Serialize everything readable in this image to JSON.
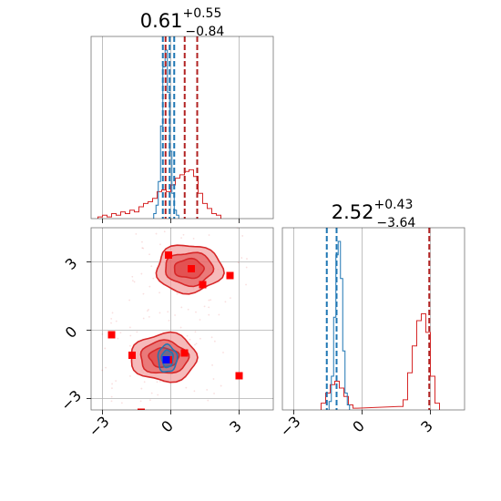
{
  "colors": {
    "red": "#d62728",
    "red_dark": "#b22222",
    "blue": "#1f77b4",
    "marker_red": "#ff0000",
    "marker_blue": "#0000ff",
    "contour_fill_light": "#f3a3a3",
    "contour_fill_dark": "#e04545"
  },
  "chart_data": {
    "type": "corner",
    "grid": true,
    "axis_range": [
      -3.5,
      4.5
    ],
    "ticks": [
      -3,
      0,
      3
    ],
    "tick_labels": [
      "−3",
      "0",
      "3"
    ],
    "panels": {
      "top_left": {
        "title": {
          "value": "0.61",
          "sup": "+0.55",
          "sub": "−0.84"
        },
        "red_hist": {
          "bins": [
            -3.1,
            -2.9,
            -2.7,
            -2.5,
            -2.3,
            -2.1,
            -1.9,
            -1.7,
            -1.5,
            -1.3,
            -1.1,
            -0.9,
            -0.7,
            -0.5,
            -0.3,
            -0.1,
            0.1,
            0.3,
            0.5,
            0.7,
            0.9,
            1.1,
            1.3,
            1.5,
            1.7,
            1.9,
            2.1
          ],
          "counts": [
            0.01,
            0.02,
            0.01,
            0.03,
            0.02,
            0.04,
            0.03,
            0.05,
            0.04,
            0.07,
            0.09,
            0.1,
            0.12,
            0.16,
            0.17,
            0.16,
            0.2,
            0.24,
            0.26,
            0.28,
            0.29,
            0.25,
            0.15,
            0.09,
            0.06,
            0.03,
            0.02
          ]
        },
        "blue_hist": {
          "bins": [
            -0.7,
            -0.6,
            -0.5,
            -0.4,
            -0.3,
            -0.2,
            -0.1,
            0.0,
            0.1,
            0.2,
            0.3
          ],
          "counts": [
            0.03,
            0.08,
            0.22,
            0.55,
            0.9,
            1.0,
            0.75,
            0.4,
            0.15,
            0.05,
            0.02
          ]
        },
        "red_lines": [
          -0.23,
          0.61,
          1.16
        ],
        "blue_lines": [
          -0.35,
          -0.05,
          0.15
        ]
      },
      "bottom_right": {
        "title": {
          "value": "2.52",
          "sup": "+0.43",
          "sub": "−3.64"
        },
        "red_hist": {
          "bins": [
            -1.7,
            -1.5,
            -1.3,
            -1.1,
            -0.9,
            -0.7,
            -0.5,
            -0.3,
            1.7,
            1.9,
            2.1,
            2.3,
            2.5,
            2.7,
            2.9,
            3.1,
            3.3
          ],
          "counts": [
            0.04,
            0.1,
            0.15,
            0.17,
            0.13,
            0.08,
            0.03,
            0.01,
            0.02,
            0.06,
            0.22,
            0.38,
            0.53,
            0.57,
            0.46,
            0.2,
            0.04
          ]
        },
        "blue_hist": {
          "bins": [
            -1.4,
            -1.3,
            -1.2,
            -1.1,
            -1.0,
            -0.9,
            -0.8,
            -0.7,
            -0.6
          ],
          "counts": [
            0.05,
            0.2,
            0.55,
            0.92,
            1.0,
            0.78,
            0.35,
            0.1,
            0.03
          ]
        },
        "red_lines": [
          -1.12,
          2.95
        ],
        "blue_lines": [
          -1.55,
          -1.12
        ]
      },
      "bottom_left": {
        "red_blob_centers": [
          [
            0.8,
            2.7
          ],
          [
            -0.3,
            -1.2
          ]
        ],
        "blue_blob_center": [
          -0.15,
          -1.25
        ],
        "red_markers": [
          [
            -0.1,
            3.3
          ],
          [
            0.9,
            2.7
          ],
          [
            1.4,
            2.0
          ],
          [
            2.6,
            2.4
          ],
          [
            -2.6,
            -0.2
          ],
          [
            -1.7,
            -1.1
          ],
          [
            -0.1,
            -1.3
          ],
          [
            0.6,
            -1.0
          ],
          [
            3.0,
            -2.0
          ],
          [
            -1.3,
            -3.6
          ]
        ],
        "blue_markers": [
          [
            -0.2,
            -1.3
          ]
        ]
      }
    }
  }
}
